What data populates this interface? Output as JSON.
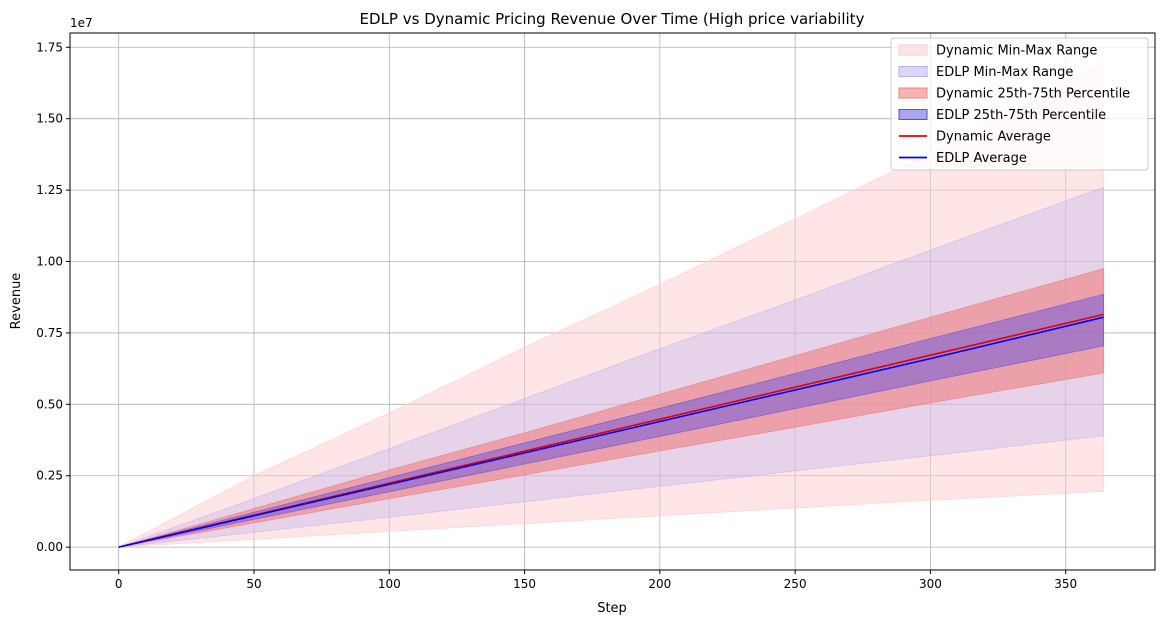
{
  "chart_data": {
    "type": "area",
    "title": "EDLP vs Dynamic Pricing Revenue Over Time (High price variability",
    "xlabel": "Step",
    "ylabel": "Revenue",
    "y_scale_label": "1e7",
    "xlim": [
      -18,
      383
    ],
    "ylim": [
      -800000,
      18000000
    ],
    "x_ticks": [
      0,
      50,
      100,
      150,
      200,
      250,
      300,
      350
    ],
    "x_tick_labels": [
      "0",
      "50",
      "100",
      "150",
      "200",
      "250",
      "300",
      "350"
    ],
    "y_ticks": [
      0,
      2500000,
      5000000,
      7500000,
      10000000,
      12500000,
      15000000,
      17500000
    ],
    "y_tick_labels": [
      "0.00",
      "0.25",
      "0.50",
      "0.75",
      "1.00",
      "1.25",
      "1.50",
      "1.75"
    ],
    "grid": true,
    "legend_position": "top-right",
    "x": [
      0,
      50,
      100,
      150,
      200,
      250,
      300,
      364
    ],
    "series": [
      {
        "name": "Dynamic Min-Max Range",
        "kind": "band",
        "color": "#ffcccc",
        "alpha": 0.5,
        "lower": [
          0,
          270000,
          550000,
          820000,
          1100000,
          1370000,
          1640000,
          1950000
        ],
        "upper": [
          0,
          2500000,
          4700000,
          7000000,
          9200000,
          11500000,
          13800000,
          17000000
        ]
      },
      {
        "name": "EDLP Min-Max Range",
        "kind": "band",
        "color": "#b8b0f0",
        "alpha": 0.35,
        "lower": [
          0,
          520000,
          1050000,
          1590000,
          2130000,
          2670000,
          3200000,
          3900000
        ],
        "upper": [
          0,
          1700000,
          3450000,
          5200000,
          6950000,
          8650000,
          10400000,
          12600000
        ]
      },
      {
        "name": "Dynamic 25th-75th Percentile",
        "kind": "band",
        "color": "#f08080",
        "alpha": 0.6,
        "lower": [
          0,
          850000,
          1700000,
          2530000,
          3370000,
          4200000,
          5050000,
          6100000
        ],
        "upper": [
          0,
          1350000,
          2700000,
          4000000,
          5350000,
          6700000,
          8050000,
          9750000
        ]
      },
      {
        "name": "EDLP 25th-75th Percentile",
        "kind": "band",
        "color": "#5a4ee0",
        "alpha": 0.45,
        "lower": [
          0,
          970000,
          1940000,
          2910000,
          3880000,
          4850000,
          5820000,
          7050000
        ],
        "upper": [
          0,
          1220000,
          2430000,
          3650000,
          4860000,
          6080000,
          7300000,
          8850000
        ]
      },
      {
        "name": "Dynamic Average",
        "kind": "line",
        "color": "#e00000",
        "values": [
          0,
          1120000,
          2240000,
          3360000,
          4480000,
          5600000,
          6720000,
          8150000
        ]
      },
      {
        "name": "EDLP Average",
        "kind": "line",
        "color": "#0000ee",
        "values": [
          0,
          1100000,
          2200000,
          3300000,
          4400000,
          5500000,
          6600000,
          8050000
        ]
      }
    ]
  }
}
